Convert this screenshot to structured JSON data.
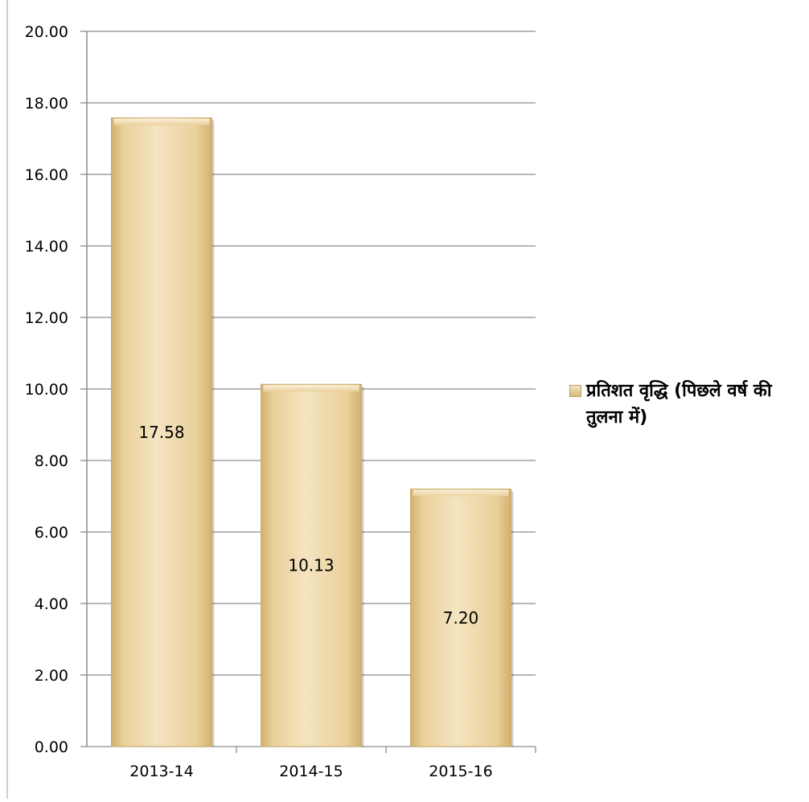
{
  "chart_data": {
    "type": "bar",
    "categories": [
      "2013-14",
      "2014-15",
      "2015-16"
    ],
    "series": [
      {
        "name": "प्रतिशत वृद्धि (पिछले वर्ष की तुलना में)",
        "values": [
          17.58,
          10.13,
          7.2
        ],
        "labels": [
          "17.58",
          "10.13",
          "7.20"
        ]
      }
    ],
    "yticks": [
      "0.00",
      "2.00",
      "4.00",
      "6.00",
      "8.00",
      "10.00",
      "12.00",
      "14.00",
      "16.00",
      "18.00",
      "20.00"
    ],
    "ylim": [
      0,
      20
    ],
    "grid": true,
    "legend_position": "right",
    "title": "",
    "xlabel": "",
    "ylabel": "",
    "colors": {
      "bar_light": "#f4e4c1",
      "bar_mid": "#ead09a",
      "bar_dark": "#d2b070",
      "grid": "#8c8c8c"
    }
  }
}
